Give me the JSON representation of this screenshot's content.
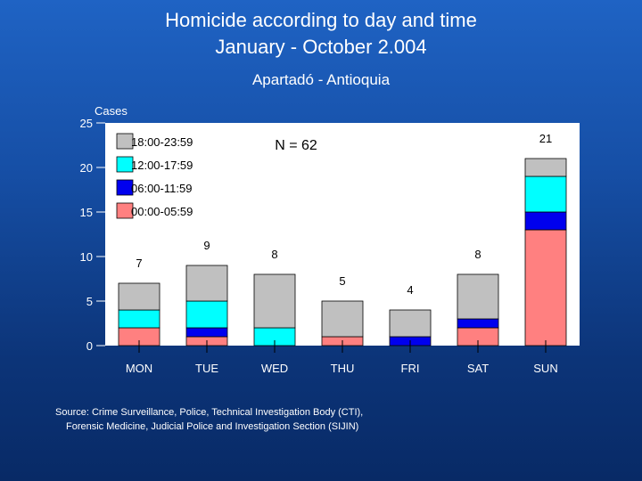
{
  "header": {
    "title_line1": "Homicide according to day and time",
    "title_line2": "January - October 2.004",
    "subtitle": "Apartadó - Antioquia"
  },
  "source": {
    "line1": "Source: Crime Surveillance, Police, Technical Investigation Body (CTI),",
    "line2": "Forensic Medicine, Judicial Police and Investigation Section (SIJIN)"
  },
  "chart_data": {
    "type": "bar",
    "stacked": true,
    "ylabel": "Cases",
    "ylim": [
      0,
      25
    ],
    "yticks": [
      0,
      5,
      10,
      15,
      20,
      25
    ],
    "annotation": "N = 62",
    "legend_position": "top-left",
    "categories": [
      "MON",
      "TUE",
      "WED",
      "THU",
      "FRI",
      "SAT",
      "SUN"
    ],
    "totals": [
      7,
      9,
      8,
      5,
      4,
      8,
      21
    ],
    "series": [
      {
        "name": "00:00-05:59",
        "color": "#ff8080",
        "values": [
          2,
          1,
          0,
          1,
          0,
          2,
          13
        ]
      },
      {
        "name": "06:00-11:59",
        "color": "#0000ee",
        "values": [
          0,
          1,
          0,
          0,
          1,
          1,
          2
        ]
      },
      {
        "name": "12:00-17:59",
        "color": "#00ffff",
        "values": [
          2,
          3,
          2,
          0,
          0,
          0,
          4
        ]
      },
      {
        "name": "18:00-23:59",
        "color": "#c0c0c0",
        "values": [
          3,
          4,
          6,
          4,
          3,
          5,
          2
        ]
      }
    ]
  }
}
